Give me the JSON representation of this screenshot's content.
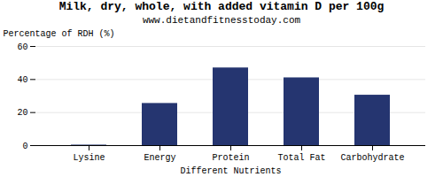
{
  "chart_data": {
    "type": "bar",
    "title": "Milk, dry, whole, with added vitamin D per 100g",
    "subtitle": "www.dietandfitnesstoday.com",
    "xlabel": "Different Nutrients",
    "ylabel": "Percentage of RDH (%)",
    "categories": [
      "Lysine",
      "Energy",
      "Protein",
      "Total Fat",
      "Carbohydrate"
    ],
    "values": [
      0.3,
      25.5,
      47.0,
      41.0,
      30.5
    ],
    "color": "#253570",
    "ylim": [
      0,
      60
    ],
    "yticks": [
      0,
      20,
      40,
      60
    ],
    "grid": true
  }
}
